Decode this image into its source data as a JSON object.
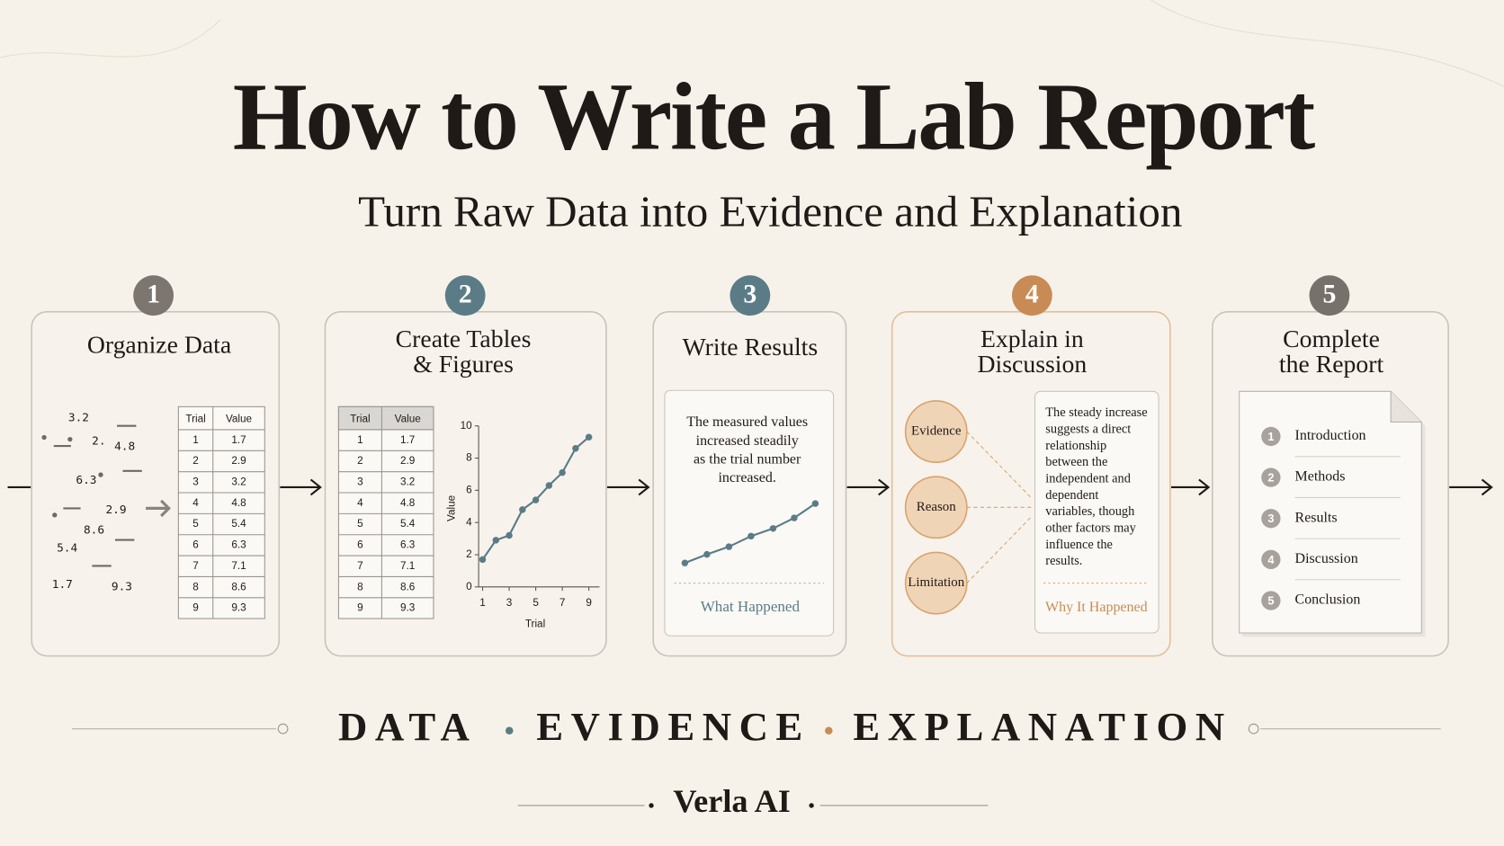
{
  "title": "How to Write a Lab Report",
  "subtitle": "Turn Raw Data into Evidence and Explanation",
  "steps": [
    {
      "number": "1",
      "title_lines": [
        "Organize Data"
      ],
      "scattered": [
        "3.2",
        "2.",
        "4.8",
        "6.3",
        "2.9",
        "8.6",
        "5.4",
        "1.7",
        "9.3"
      ],
      "table": {
        "headers": [
          "Trial",
          "Value"
        ],
        "rows": [
          [
            1,
            1.7
          ],
          [
            2,
            2.9
          ],
          [
            3,
            3.2
          ],
          [
            4,
            4.8
          ],
          [
            5,
            5.4
          ],
          [
            6,
            6.3
          ],
          [
            7,
            7.1
          ],
          [
            8,
            8.6
          ],
          [
            9,
            9.3
          ]
        ]
      }
    },
    {
      "number": "2",
      "title_lines": [
        "Create Tables",
        "& Figures"
      ],
      "table": {
        "headers": [
          "Trial",
          "Value"
        ],
        "rows": [
          [
            1,
            1.7
          ],
          [
            2,
            2.9
          ],
          [
            3,
            3.2
          ],
          [
            4,
            4.8
          ],
          [
            5,
            5.4
          ],
          [
            6,
            6.3
          ],
          [
            7,
            7.1
          ],
          [
            8,
            8.6
          ],
          [
            9,
            9.3
          ]
        ]
      },
      "chart": {
        "type": "line",
        "x": [
          1,
          2,
          3,
          4,
          5,
          6,
          7,
          8,
          9
        ],
        "values": [
          1.7,
          2.9,
          3.2,
          4.8,
          5.4,
          6.3,
          7.1,
          8.6,
          9.3
        ],
        "xlabel": "Trial",
        "ylabel": "Value",
        "color": "#5b7c87",
        "xlim": [
          0.7,
          9.8
        ],
        "ylim": [
          0,
          10
        ],
        "xticks": [
          1,
          3,
          5,
          7,
          9
        ],
        "yticks": [
          0,
          2,
          4,
          6,
          8,
          10
        ]
      }
    },
    {
      "number": "3",
      "title_lines": [
        "Write Results"
      ],
      "text_lines": [
        "The measured values",
        "increased steadily",
        "as the trial number",
        "increased."
      ],
      "caption": "What Happened"
    },
    {
      "number": "4",
      "title_lines": [
        "Explain in",
        "Discussion"
      ],
      "bubbles": [
        "Evidence",
        "Reason",
        "Limitation"
      ],
      "text_lines": [
        "The steady increase",
        "suggests a direct",
        "relationship",
        "between the",
        "independent and",
        "dependent",
        "variables, though",
        "other factors may",
        "influence the",
        "results."
      ],
      "caption": "Why It Happened"
    },
    {
      "number": "5",
      "title_lines": [
        "Complete",
        "the Report"
      ],
      "sections": [
        {
          "number": "1",
          "name": "Introduction"
        },
        {
          "number": "2",
          "name": "Methods"
        },
        {
          "number": "3",
          "name": "Results"
        },
        {
          "number": "4",
          "name": "Discussion"
        },
        {
          "number": "5",
          "name": "Conclusion"
        }
      ]
    }
  ],
  "tagline": [
    "DATA",
    "EVIDENCE",
    "EXPLANATION"
  ],
  "brand": "Verla AI"
}
